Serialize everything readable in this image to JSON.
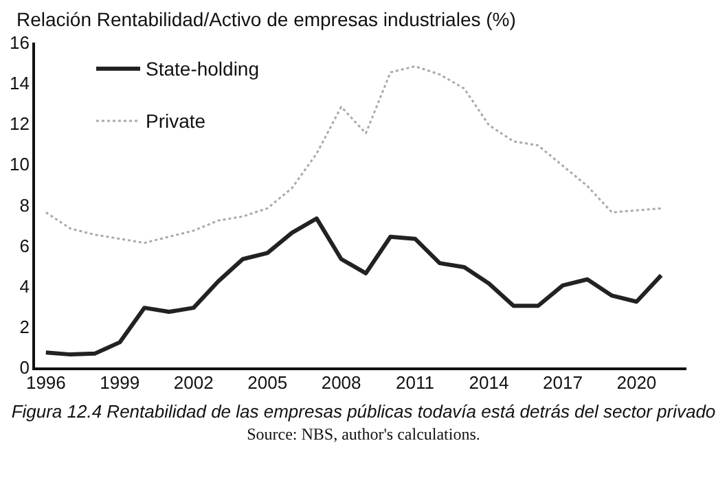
{
  "chart_data": {
    "type": "line",
    "ylabel": "Relación Rentabilidad/Activo de empresas industriales (%)",
    "annotations": [
      "Figura 12.4 Rentabilidad de las empresas públicas todavía está detrás del sector privado",
      "Source: NBS, author's calculations."
    ],
    "x": [
      1996,
      1997,
      1998,
      1999,
      2000,
      2001,
      2002,
      2003,
      2004,
      2005,
      2006,
      2007,
      2008,
      2009,
      2010,
      2011,
      2012,
      2013,
      2014,
      2015,
      2016,
      2017,
      2018,
      2019,
      2020,
      2021
    ],
    "series": [
      {
        "name": "State-holding",
        "color": "#222222",
        "line_style": "solid",
        "values": [
          0.8,
          0.7,
          0.75,
          1.3,
          3.0,
          2.8,
          3.0,
          4.3,
          5.4,
          5.7,
          6.7,
          7.4,
          5.4,
          4.7,
          6.5,
          6.4,
          5.2,
          5.0,
          4.2,
          3.1,
          3.1,
          4.1,
          4.4,
          3.6,
          3.3,
          4.6
        ]
      },
      {
        "name": "Private",
        "color": "#aaaaaa",
        "line_style": "dotted",
        "values": [
          7.7,
          6.9,
          6.6,
          6.4,
          6.2,
          6.5,
          6.8,
          7.3,
          7.5,
          7.9,
          8.9,
          10.6,
          12.9,
          11.6,
          14.6,
          14.9,
          14.5,
          13.8,
          12.0,
          11.2,
          11.0,
          10.0,
          9.0,
          7.7,
          7.8,
          7.9
        ]
      }
    ],
    "xlim": [
      1995.5,
      2022
    ],
    "xticks": [
      1996,
      1999,
      2002,
      2005,
      2008,
      2011,
      2014,
      2017,
      2020
    ],
    "ylim": [
      0,
      16
    ],
    "yticks": [
      0,
      2,
      4,
      6,
      8,
      10,
      12,
      14,
      16
    ],
    "grid": false,
    "legend": "top left",
    "marker": "none"
  }
}
